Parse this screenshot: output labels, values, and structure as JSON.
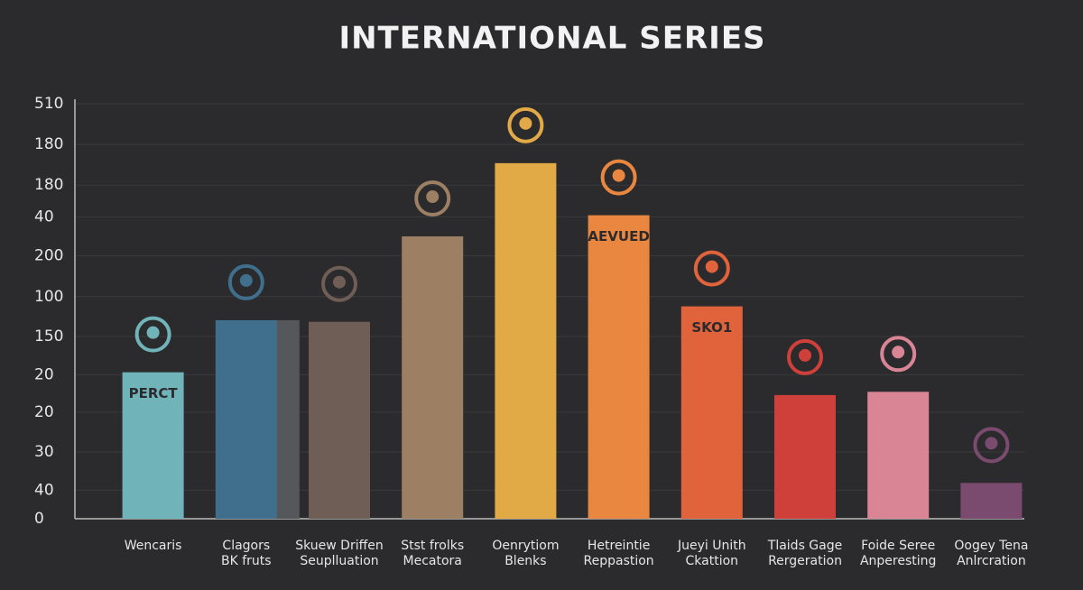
{
  "chart_data": {
    "type": "bar",
    "title": "INTERNATIONAL SERIES",
    "categories": [
      [
        "Wencaris"
      ],
      [
        "Clagors",
        "BK fruts"
      ],
      [
        "Skuew Driffen",
        "Seuplluation"
      ],
      [
        "Stst frolks",
        "Mecatora"
      ],
      [
        "Oenrytiom",
        "Blenks"
      ],
      [
        "Hetreintie",
        "Reppastion"
      ],
      [
        "Jueyi Unith",
        "Ckattion"
      ],
      [
        "Tlaids Gage",
        "Rergeration"
      ],
      [
        "Foide Seree",
        "Anperesting"
      ],
      [
        "Oogey Tena",
        "Anlrcration"
      ]
    ],
    "values": [
      180,
      244,
      242,
      347,
      437,
      373,
      261,
      152,
      156,
      44
    ],
    "bar_labels": [
      "PERCT",
      null,
      null,
      null,
      null,
      "AEVUED",
      "SKO1",
      null,
      null,
      null
    ],
    "colors": [
      "#70b4b9",
      "#3f6f8d",
      "#6f5e56",
      "#9d8063",
      "#e2aa47",
      "#e9863f",
      "#e0633b",
      "#d0403a",
      "#d98596",
      "#7a4b6e"
    ],
    "ylim": [
      0,
      510
    ],
    "yticks": [
      0,
      {
        "value": 35,
        "label": "40"
      },
      {
        "value": 82,
        "label": "30"
      },
      {
        "value": 131,
        "label": "20"
      },
      {
        "value": 177,
        "label": "20"
      },
      {
        "value": 224,
        "label": "150"
      },
      {
        "value": 273,
        "label": "100"
      },
      {
        "value": 323,
        "label": "200"
      },
      {
        "value": 371,
        "label": "40"
      },
      {
        "value": 410,
        "label": "180"
      },
      {
        "value": 460,
        "label": "180"
      },
      510
    ],
    "grid": true
  }
}
